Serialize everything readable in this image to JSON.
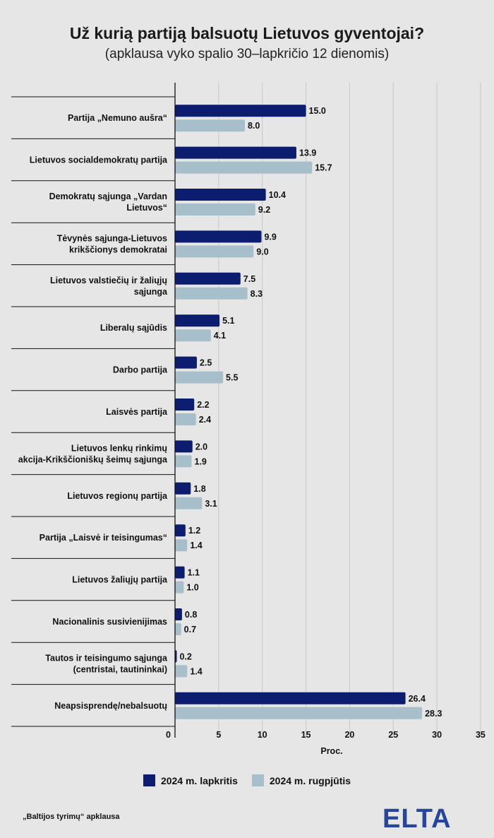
{
  "title": "Už kurią partiją balsuotų Lietuvos gyventojai?",
  "subtitle": "(apklausa vyko spalio 30–lapkričio 12 dienomis)",
  "source": "„Baltijos tyrimų“ apklausa",
  "logo_text": "ELTA",
  "colors": {
    "series1": "#0c1c6e",
    "series2": "#a7bfca",
    "logo": "#26459c",
    "grid": "#c7c7c7",
    "axis": "#111111"
  },
  "chart_data": {
    "type": "bar",
    "orientation": "horizontal",
    "xlabel": "Proc.",
    "xlim": [
      0,
      35
    ],
    "xticks": [
      0,
      5,
      10,
      15,
      20,
      25,
      30,
      35
    ],
    "grid": true,
    "legend_position": "bottom",
    "categories": [
      [
        "Partija „Nemuno aušra“"
      ],
      [
        "Lietuvos socialdemokratų partija"
      ],
      [
        "Demokratų sąjunga „Vardan",
        "Lietuvos“"
      ],
      [
        "Tėvynės sąjunga-Lietuvos",
        "krikščionys demokratai"
      ],
      [
        "Lietuvos valstiečių ir žaliųjų",
        "sąjunga"
      ],
      [
        "Liberalų sąjūdis"
      ],
      [
        "Darbo partija"
      ],
      [
        "Laisvės partija"
      ],
      [
        "Lietuvos lenkų rinkimų",
        "akcija-Krikščioniškų šeimų sąjunga"
      ],
      [
        "Lietuvos regionų partija"
      ],
      [
        "Partija „Laisvė ir teisingumas“"
      ],
      [
        "Lietuvos žaliųjų partija"
      ],
      [
        "Nacionalinis susivienijimas"
      ],
      [
        "Tautos ir teisingumo sąjunga",
        "(centristai, tautininkai)"
      ],
      [
        "Neapsisprendę/nebalsuotų"
      ]
    ],
    "series": [
      {
        "name": "2024 m. lapkritis",
        "values": [
          15.0,
          13.9,
          10.4,
          9.9,
          7.5,
          5.1,
          2.5,
          2.2,
          2.0,
          1.8,
          1.2,
          1.1,
          0.8,
          0.2,
          26.4
        ],
        "labels": [
          "15.0",
          "13.9",
          "10.4",
          "9.9",
          "7.5",
          "5.1",
          "2.5",
          "2.2",
          "2.0",
          "1.8",
          "1.2",
          "1.1",
          "0.8",
          "0.2",
          "26.4"
        ]
      },
      {
        "name": "2024 m. rugpjūtis",
        "values": [
          8.0,
          15.7,
          9.2,
          9.0,
          8.3,
          4.1,
          5.5,
          2.4,
          1.9,
          3.1,
          1.4,
          1.0,
          0.7,
          1.4,
          28.3
        ],
        "labels": [
          "8.0",
          "15.7",
          "9.2",
          "9.0",
          "8.3",
          "4.1",
          "5.5",
          "2.4",
          "1.9",
          "3.1",
          "1.4",
          "1.0",
          "0.7",
          "1.4",
          "28.3"
        ]
      }
    ]
  }
}
